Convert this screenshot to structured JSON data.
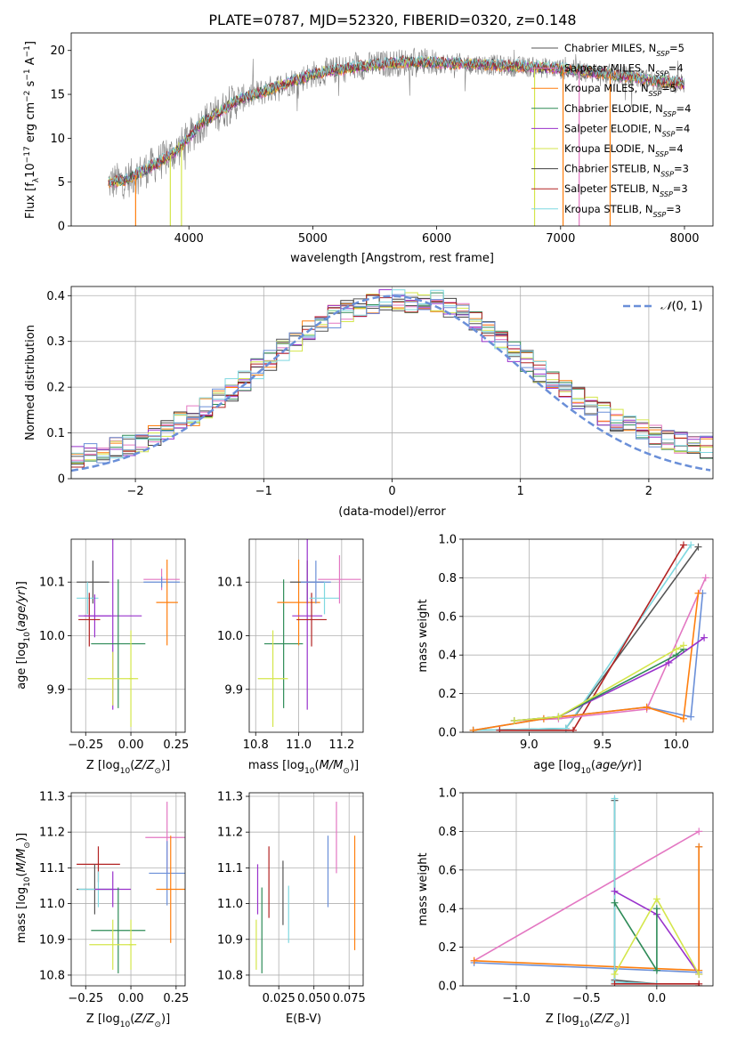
{
  "title": "PLATE=0787, MJD=52320, FIBERID=0320, z=0.148",
  "colors": {
    "chabrier_miles": "#555555",
    "salpeter_miles": "#e377c2",
    "kroupa_miles": "#ff7f0e",
    "chabrier_elodie": "#2e8b57",
    "salpeter_elodie": "#9932cc",
    "kroupa_elodie": "#d4e64b",
    "chabrier_stelib": "#404040",
    "salpeter_stelib": "#b22222",
    "kroupa_stelib": "#7fd8e0",
    "model_blue": "#6a8fd8",
    "data_gray": "#808080"
  },
  "chart_data": [
    {
      "id": "spectrum",
      "type": "line",
      "xlabel": "wavelength [Angstrom, rest frame]",
      "ylabel": "Flux [f_λ 10^-17 erg cm^-2 s^-1 A^-1]",
      "xlim": [
        3050,
        8230
      ],
      "ylim": [
        0,
        22
      ],
      "xticks": [
        4000,
        5000,
        6000,
        7000,
        8000
      ],
      "yticks": [
        0,
        5,
        10,
        15,
        20
      ],
      "grid": false,
      "legend_position": "top-right",
      "legend": [
        {
          "base": "Chabrier MILES, N",
          "sub": "SSP",
          "tail": "=5",
          "color": "#555555"
        },
        {
          "base": "Salpeter MILES, N",
          "sub": "SSP",
          "tail": "=4",
          "color": "#e377c2"
        },
        {
          "base": "Kroupa MILES, N",
          "sub": "SSP",
          "tail": "=5",
          "color": "#ff7f0e"
        },
        {
          "base": "Chabrier ELODIE, N",
          "sub": "SSP",
          "tail": "=4",
          "color": "#2e8b57"
        },
        {
          "base": "Salpeter ELODIE, N",
          "sub": "SSP",
          "tail": "=4",
          "color": "#9932cc"
        },
        {
          "base": "Kroupa ELODIE, N",
          "sub": "SSP",
          "tail": "=4",
          "color": "#d4e64b"
        },
        {
          "base": "Chabrier STELIB, N",
          "sub": "SSP",
          "tail": "=3",
          "color": "#404040"
        },
        {
          "base": "Salpeter STELIB, N",
          "sub": "SSP",
          "tail": "=3",
          "color": "#b22222"
        },
        {
          "base": "Kroupa STELIB, N",
          "sub": "SSP",
          "tail": "=3",
          "color": "#7fd8e0"
        }
      ],
      "continuum_x": [
        3350,
        3500,
        3600,
        3700,
        3800,
        3900,
        4000,
        4100,
        4200,
        4400,
        4600,
        4800,
        5000,
        5200,
        5400,
        5600,
        5800,
        6000,
        6200,
        6400,
        6600,
        6800,
        7000,
        7200,
        7400,
        7600,
        7800,
        8000
      ],
      "continuum_y": [
        4.9,
        5.3,
        6.0,
        6.8,
        7.6,
        8.6,
        10.0,
        11.7,
        12.6,
        14.4,
        15.3,
        16.3,
        17.3,
        17.8,
        18.2,
        18.5,
        18.7,
        18.6,
        18.5,
        18.4,
        18.2,
        18.1,
        17.9,
        17.6,
        17.3,
        16.9,
        16.5,
        16.2
      ],
      "spikes_to_zero": [
        3570,
        3850,
        3940,
        6790,
        7020,
        7150,
        7400
      ]
    },
    {
      "id": "residuals",
      "type": "histogram",
      "xlabel": "(data-model)/error",
      "ylabel": "Normed distribution",
      "xlim": [
        -2.5,
        2.5
      ],
      "ylim": [
        0,
        0.42
      ],
      "xticks": [
        -2,
        -1,
        0,
        1,
        2
      ],
      "yticks": [
        0.0,
        0.1,
        0.2,
        0.3,
        0.4
      ],
      "grid": true,
      "legend_position": "top-right",
      "reference_curve": {
        "name": "N(0,1)",
        "mean": 0,
        "sigma": 1,
        "style": "dashed"
      },
      "bin_width": 0.1
    },
    {
      "id": "age_vs_Z",
      "type": "errorbar",
      "xlabel": "Z [log10(Z/Z_sun)]",
      "ylabel": "age [log10(age/yr)]",
      "xlim": [
        -0.33,
        0.3
      ],
      "ylim": [
        9.82,
        10.18
      ],
      "xticks": [
        -0.25,
        0.0,
        0.25
      ],
      "xtick_labels": [
        "−0.25",
        "0.00",
        "0.25"
      ],
      "yticks": [
        9.9,
        10.0,
        10.1
      ],
      "yticks_labels": [
        "9.9",
        "10.0",
        "10.1"
      ],
      "grid": true,
      "points": [
        {
          "x": -0.21,
          "xerr": 0.09,
          "y": 10.1,
          "yerr": 0.04,
          "color": "#555555"
        },
        {
          "x": -0.24,
          "xerr": 0.06,
          "y": 10.07,
          "yerr": 0.03,
          "color": "#7fd8e0"
        },
        {
          "x": -0.2,
          "xerr": 0.09,
          "y": 10.037,
          "yerr": 0.04,
          "color": "#9932cc"
        },
        {
          "x": -0.23,
          "xerr": 0.06,
          "y": 10.03,
          "yerr": 0.05,
          "color": "#b22222"
        },
        {
          "x": -0.1,
          "xerr": 0.16,
          "y": 10.037,
          "yerr": 0.175,
          "color": "#9932cc"
        },
        {
          "x": -0.07,
          "xerr": 0.15,
          "y": 9.985,
          "yerr": 0.12,
          "color": "#2e8b57"
        },
        {
          "x": -0.1,
          "xerr": 0.14,
          "y": 9.92,
          "yerr": 0.05,
          "color": "#d4e64b"
        },
        {
          "x": 0.0,
          "xerr": 0.01,
          "y": 9.92,
          "yerr": 0.09,
          "color": "#d4e64b"
        },
        {
          "x": 0.17,
          "xerr": 0.1,
          "y": 10.105,
          "yerr": 0.02,
          "color": "#e377c2"
        },
        {
          "x": 0.17,
          "xerr": 0.1,
          "y": 10.1,
          "yerr": 0.01,
          "color": "#6a8fd8"
        },
        {
          "x": 0.2,
          "xerr": 0.06,
          "y": 10.062,
          "yerr": 0.08,
          "color": "#ff7f0e"
        }
      ]
    },
    {
      "id": "age_vs_mass",
      "type": "errorbar",
      "xlabel": "mass [log10(M/M_sun)]",
      "xlim": [
        10.77,
        11.3
      ],
      "ylim": [
        9.82,
        10.18
      ],
      "xticks": [
        10.8,
        11.0,
        11.2
      ],
      "xtick_labels": [
        "10.8",
        "11.0",
        "11.2"
      ],
      "yticks": [
        9.9,
        10.0,
        10.1
      ],
      "yticks_labels": [
        "9.9",
        "10.0",
        "10.1"
      ],
      "grid": true,
      "points": [
        {
          "x": 10.93,
          "xerr": 0.09,
          "y": 9.985,
          "yerr": 0.12,
          "color": "#2e8b57"
        },
        {
          "x": 10.88,
          "xerr": 0.07,
          "y": 9.92,
          "yerr": 0.09,
          "color": "#d4e64b"
        },
        {
          "x": 11.0,
          "xerr": 0.1,
          "y": 10.062,
          "yerr": 0.08,
          "color": "#ff7f0e"
        },
        {
          "x": 11.04,
          "xerr": 0.08,
          "y": 10.1,
          "yerr": 0.04,
          "color": "#555555"
        },
        {
          "x": 11.04,
          "xerr": 0.07,
          "y": 10.037,
          "yerr": 0.175,
          "color": "#9932cc"
        },
        {
          "x": 11.06,
          "xerr": 0.07,
          "y": 10.03,
          "yerr": 0.05,
          "color": "#b22222"
        },
        {
          "x": 11.08,
          "xerr": 0.07,
          "y": 10.1,
          "yerr": 0.04,
          "color": "#6a8fd8"
        },
        {
          "x": 11.12,
          "xerr": 0.07,
          "y": 10.07,
          "yerr": 0.03,
          "color": "#7fd8e0"
        },
        {
          "x": 11.19,
          "xerr": 0.1,
          "y": 10.105,
          "yerr": 0.045,
          "color": "#e377c2"
        }
      ]
    },
    {
      "id": "weight_vs_age",
      "type": "line",
      "xlabel": "age [log10(age/yr)]",
      "ylabel": "mass weight",
      "xlim": [
        8.55,
        10.25
      ],
      "ylim": [
        0,
        1.0
      ],
      "xticks": [
        9.0,
        9.5,
        10.0
      ],
      "xtick_labels": [
        "9.0",
        "9.5",
        "10.0"
      ],
      "yticks": [
        0.0,
        0.2,
        0.4,
        0.6,
        0.8,
        1.0
      ],
      "yticks_labels": [
        "0.0",
        "0.2",
        "0.4",
        "0.6",
        "0.8",
        "1.0"
      ],
      "grid": true,
      "series": [
        {
          "color": "#555555",
          "x": [
            8.62,
            9.25,
            10.15
          ],
          "y": [
            0.01,
            0.02,
            0.96
          ]
        },
        {
          "color": "#7fd8e0",
          "x": [
            8.62,
            9.25,
            10.1
          ],
          "y": [
            0.01,
            0.02,
            0.97
          ]
        },
        {
          "color": "#b22222",
          "x": [
            8.8,
            9.3,
            10.05
          ],
          "y": [
            0.01,
            0.01,
            0.97
          ]
        },
        {
          "color": "#e377c2",
          "x": [
            8.9,
            9.2,
            9.8,
            10.2
          ],
          "y": [
            0.06,
            0.07,
            0.12,
            0.8
          ]
        },
        {
          "color": "#6a8fd8",
          "x": [
            8.62,
            9.1,
            9.8,
            10.1,
            10.18
          ],
          "y": [
            0.01,
            0.07,
            0.13,
            0.08,
            0.72
          ]
        },
        {
          "color": "#ff7f0e",
          "x": [
            8.62,
            9.1,
            9.8,
            10.05,
            10.15
          ],
          "y": [
            0.01,
            0.07,
            0.13,
            0.07,
            0.72
          ]
        },
        {
          "color": "#9932cc",
          "x": [
            8.9,
            9.2,
            9.95,
            10.19
          ],
          "y": [
            0.06,
            0.08,
            0.36,
            0.49
          ]
        },
        {
          "color": "#2e8b57",
          "x": [
            8.9,
            9.2,
            10.0,
            10.05
          ],
          "y": [
            0.06,
            0.08,
            0.4,
            0.43
          ]
        },
        {
          "color": "#d4e64b",
          "x": [
            8.9,
            9.2,
            10.0,
            10.05
          ],
          "y": [
            0.06,
            0.08,
            0.43,
            0.45
          ]
        }
      ]
    },
    {
      "id": "mass_vs_Z",
      "type": "errorbar",
      "xlabel": "Z [log10(Z/Z_sun)]",
      "ylabel": "mass [log10(M/M_sun)]",
      "xlim": [
        -0.33,
        0.3
      ],
      "ylim": [
        10.77,
        11.31
      ],
      "xticks": [
        -0.25,
        0.0,
        0.25
      ],
      "xtick_labels": [
        "−0.25",
        "0.00",
        "0.25"
      ],
      "yticks": [
        10.8,
        10.9,
        11.0,
        11.1,
        11.2,
        11.3
      ],
      "yticks_labels": [
        "10.8",
        "10.9",
        "11.0",
        "11.1",
        "11.2",
        "11.3"
      ],
      "grid": true,
      "points": [
        {
          "x": -0.18,
          "xerr": 0.12,
          "y": 11.11,
          "yerr": 0.05,
          "color": "#b22222"
        },
        {
          "x": -0.2,
          "xerr": 0.1,
          "y": 11.04,
          "yerr": 0.07,
          "color": "#555555"
        },
        {
          "x": -0.18,
          "xerr": 0.11,
          "y": 11.04,
          "yerr": 0.05,
          "color": "#7fd8e0"
        },
        {
          "x": -0.1,
          "xerr": 0.1,
          "y": 11.04,
          "yerr": 0.05,
          "color": "#9932cc"
        },
        {
          "x": -0.07,
          "xerr": 0.15,
          "y": 10.925,
          "yerr": 0.12,
          "color": "#2e8b57"
        },
        {
          "x": -0.1,
          "xerr": 0.13,
          "y": 10.885,
          "yerr": 0.07,
          "color": "#d4e64b"
        },
        {
          "x": 0.0,
          "xerr": 0.01,
          "y": 10.885,
          "yerr": 0.07,
          "color": "#d4e64b"
        },
        {
          "x": 0.2,
          "xerr": 0.12,
          "y": 11.185,
          "yerr": 0.1,
          "color": "#e377c2"
        },
        {
          "x": 0.2,
          "xerr": 0.1,
          "y": 11.085,
          "yerr": 0.09,
          "color": "#6a8fd8"
        },
        {
          "x": 0.22,
          "xerr": 0.08,
          "y": 11.04,
          "yerr": 0.15,
          "color": "#ff7f0e"
        }
      ]
    },
    {
      "id": "mass_vs_ebv",
      "type": "errorbar",
      "xlabel": "E(B-V)",
      "xlim": [
        0.004,
        0.085
      ],
      "ylim": [
        10.77,
        11.31
      ],
      "xticks": [
        0.025,
        0.05,
        0.075
      ],
      "xtick_labels": [
        "0.025",
        "0.050",
        "0.075"
      ],
      "yticks": [
        10.8,
        10.9,
        11.0,
        11.1,
        11.2,
        11.3
      ],
      "yticks_labels": [
        "10.8",
        "10.9",
        "11.0",
        "11.1",
        "11.2",
        "11.3"
      ],
      "grid": true,
      "points": [
        {
          "x": 0.009,
          "y": 10.885,
          "yerr": 0.07,
          "color": "#d4e64b"
        },
        {
          "x": 0.01,
          "y": 11.04,
          "yerr": 0.07,
          "color": "#9932cc"
        },
        {
          "x": 0.013,
          "y": 10.925,
          "yerr": 0.12,
          "color": "#2e8b57"
        },
        {
          "x": 0.018,
          "y": 11.06,
          "yerr": 0.1,
          "color": "#b22222"
        },
        {
          "x": 0.028,
          "y": 11.03,
          "yerr": 0.09,
          "color": "#555555"
        },
        {
          "x": 0.032,
          "y": 10.97,
          "yerr": 0.08,
          "color": "#7fd8e0"
        },
        {
          "x": 0.06,
          "y": 11.09,
          "yerr": 0.1,
          "color": "#6a8fd8"
        },
        {
          "x": 0.066,
          "y": 11.185,
          "yerr": 0.1,
          "color": "#e377c2"
        },
        {
          "x": 0.079,
          "y": 11.03,
          "yerr": 0.16,
          "color": "#ff7f0e"
        }
      ]
    },
    {
      "id": "weight_vs_Z",
      "type": "line",
      "xlabel": "Z [log10(Z/Z_sun)]",
      "ylabel": "mass weight",
      "xlim": [
        -1.38,
        0.4
      ],
      "ylim": [
        0,
        1.0
      ],
      "xticks": [
        -1.0,
        -0.5,
        0.0
      ],
      "xtick_labels": [
        "−1.0",
        "−0.5",
        "0.0"
      ],
      "yticks": [
        0.0,
        0.2,
        0.4,
        0.6,
        0.8,
        1.0
      ],
      "yticks_labels": [
        "0.0",
        "0.2",
        "0.4",
        "0.6",
        "0.8",
        "1.0"
      ],
      "grid": true,
      "series": [
        {
          "color": "#e377c2",
          "x": [
            -1.3,
            0.3
          ],
          "y": [
            0.13,
            0.8
          ]
        },
        {
          "color": "#6a8fd8",
          "x": [
            -1.3,
            0.3,
            0.3
          ],
          "y": [
            0.12,
            0.07,
            0.72
          ]
        },
        {
          "color": "#ff7f0e",
          "x": [
            -1.3,
            0.3,
            0.3
          ],
          "y": [
            0.13,
            0.08,
            0.72
          ]
        },
        {
          "color": "#555555",
          "x": [
            -0.3,
            -0.3,
            0.0
          ],
          "y": [
            0.96,
            0.03,
            0.01
          ]
        },
        {
          "color": "#7fd8e0",
          "x": [
            -0.3,
            -0.3,
            0.0
          ],
          "y": [
            0.97,
            0.02,
            0.01
          ]
        },
        {
          "color": "#9932cc",
          "x": [
            -0.3,
            0.0,
            0.3
          ],
          "y": [
            0.49,
            0.37,
            0.06
          ]
        },
        {
          "color": "#2e8b57",
          "x": [
            -0.3,
            0.0,
            0.0
          ],
          "y": [
            0.43,
            0.08,
            0.4
          ]
        },
        {
          "color": "#d4e64b",
          "x": [
            -0.3,
            0.0,
            0.3
          ],
          "y": [
            0.06,
            0.45,
            0.06
          ]
        },
        {
          "color": "#b22222",
          "x": [
            -0.3,
            0.3,
            0.3
          ],
          "y": [
            0.01,
            0.01,
            0.0
          ]
        }
      ]
    }
  ]
}
